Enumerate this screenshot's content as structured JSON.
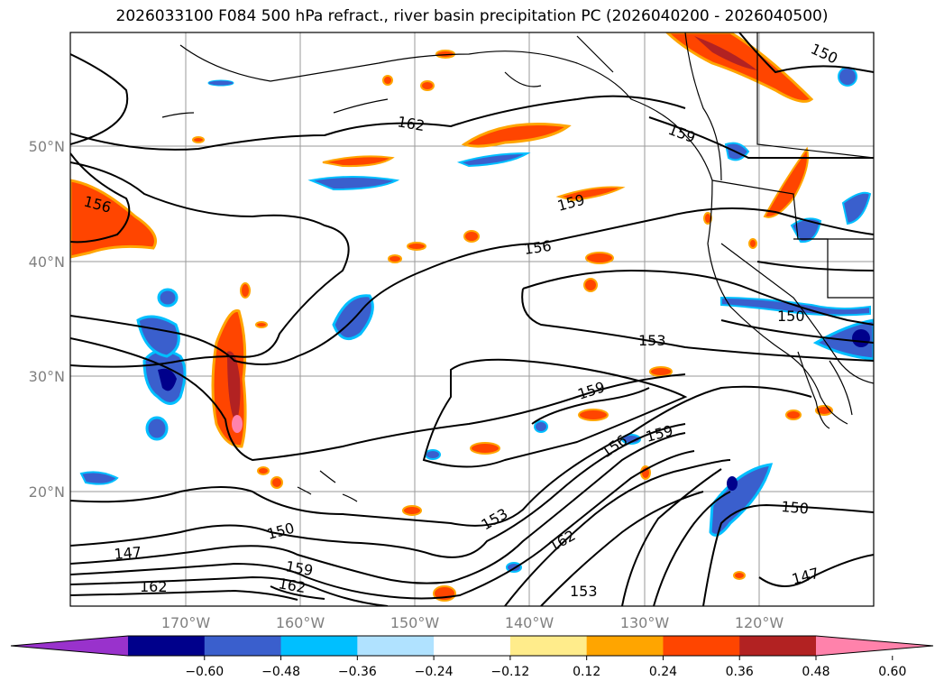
{
  "title": "2026033100 F084 500 hPa refract., river basin precipitation PC (2026040200 - 2026040500)",
  "map": {
    "lat_labels": [
      "50°N",
      "40°N",
      "30°N",
      "20°N"
    ],
    "lon_labels": [
      "170°W",
      "160°W",
      "150°W",
      "140°W",
      "130°W",
      "120°W"
    ],
    "contour_labels": [
      "162",
      "156",
      "159",
      "156",
      "159",
      "153",
      "150",
      "159",
      "156",
      "159",
      "150",
      "153",
      "162",
      "147",
      "150",
      "159",
      "162",
      "162",
      "153",
      "147",
      "150"
    ]
  },
  "colorbar": {
    "colors": [
      "#9932cc",
      "#00008b",
      "#3a5fcd",
      "#00bfff",
      "#b0e2ff",
      "#ffffff",
      "#ffec8b",
      "#ffa500",
      "#ff4500",
      "#b22222",
      "#ff82ab"
    ],
    "ticks": [
      "−0.60",
      "−0.48",
      "−0.36",
      "−0.24",
      "−0.12",
      "0.12",
      "0.24",
      "0.36",
      "0.48",
      "0.60"
    ]
  }
}
